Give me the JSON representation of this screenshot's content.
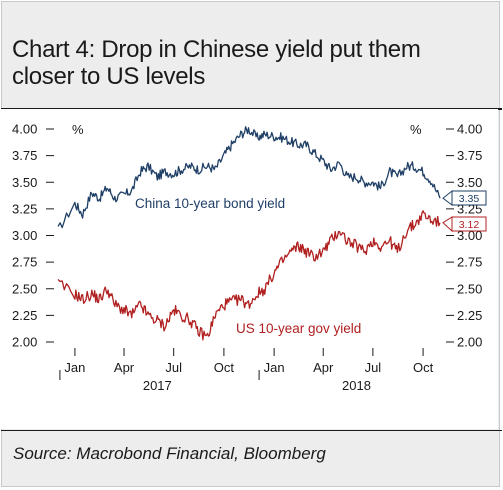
{
  "title": "Chart 4: Drop in Chinese yield put them closer to US levels",
  "source": "Source: Macrobond Financial, Bloomberg",
  "colors": {
    "china": "#1f3f66",
    "us": "#b02020",
    "background": "#ededed"
  },
  "chart_data": {
    "type": "line",
    "y_unit_label": "%",
    "ylim": [
      2.0,
      4.0
    ],
    "yticks": [
      "4.00",
      "3.75",
      "3.50",
      "3.25",
      "3.00",
      "2.75",
      "2.50",
      "2.25",
      "2.00"
    ],
    "xtick_labels": [
      "Jan",
      "Apr",
      "Jul",
      "Oct",
      "Jan",
      "Apr",
      "Jul",
      "Oct"
    ],
    "year_labels": [
      "2017",
      "2018"
    ],
    "grid": false,
    "series": [
      {
        "name": "China 10-year bond yield",
        "end_label": "3.35",
        "x": [
          "2016-12",
          "2017-01",
          "2017-01-15",
          "2017-02",
          "2017-02-15",
          "2017-03",
          "2017-03-15",
          "2017-04",
          "2017-04-15",
          "2017-05",
          "2017-05-15",
          "2017-06",
          "2017-06-15",
          "2017-07",
          "2017-07-15",
          "2017-08",
          "2017-08-15",
          "2017-09",
          "2017-09-15",
          "2017-10",
          "2017-10-15",
          "2017-11",
          "2017-11-15",
          "2017-12",
          "2017-12-15",
          "2018-01",
          "2018-01-15",
          "2018-02",
          "2018-02-15",
          "2018-03",
          "2018-03-15",
          "2018-04",
          "2018-04-15",
          "2018-05",
          "2018-05-15",
          "2018-06",
          "2018-06-15",
          "2018-07",
          "2018-07-15",
          "2018-08",
          "2018-08-15",
          "2018-09",
          "2018-09-15",
          "2018-10",
          "2018-10-15",
          "2018-11"
        ],
        "values": [
          3.05,
          3.3,
          3.2,
          3.4,
          3.35,
          3.45,
          3.35,
          3.38,
          3.42,
          3.6,
          3.65,
          3.55,
          3.6,
          3.58,
          3.62,
          3.65,
          3.62,
          3.65,
          3.62,
          3.75,
          3.85,
          3.95,
          4.0,
          3.92,
          3.95,
          3.93,
          3.92,
          3.88,
          3.85,
          3.85,
          3.78,
          3.7,
          3.62,
          3.68,
          3.55,
          3.55,
          3.5,
          3.5,
          3.45,
          3.6,
          3.55,
          3.65,
          3.65,
          3.6,
          3.52,
          3.35
        ]
      },
      {
        "name": "US 10-year gov yield",
        "end_label": "3.12",
        "x": [
          "2016-12",
          "2017-01",
          "2017-01-15",
          "2017-02",
          "2017-02-15",
          "2017-03",
          "2017-03-15",
          "2017-04",
          "2017-04-15",
          "2017-05",
          "2017-05-15",
          "2017-06",
          "2017-06-15",
          "2017-07",
          "2017-07-15",
          "2017-08",
          "2017-08-15",
          "2017-09",
          "2017-09-15",
          "2017-10",
          "2017-10-15",
          "2017-11",
          "2017-11-15",
          "2017-12",
          "2017-12-15",
          "2018-01",
          "2018-01-15",
          "2018-02",
          "2018-02-15",
          "2018-03",
          "2018-03-15",
          "2018-04",
          "2018-04-15",
          "2018-05",
          "2018-05-15",
          "2018-06",
          "2018-06-15",
          "2018-07",
          "2018-07-15",
          "2018-08",
          "2018-08-15",
          "2018-09",
          "2018-09-15",
          "2018-10",
          "2018-10-15",
          "2018-11"
        ],
        "values": [
          2.55,
          2.45,
          2.4,
          2.45,
          2.4,
          2.5,
          2.35,
          2.3,
          2.25,
          2.35,
          2.25,
          2.2,
          2.15,
          2.3,
          2.25,
          2.2,
          2.1,
          2.05,
          2.25,
          2.35,
          2.38,
          2.4,
          2.35,
          2.45,
          2.5,
          2.65,
          2.75,
          2.85,
          2.9,
          2.85,
          2.8,
          2.85,
          2.95,
          3.05,
          2.95,
          2.9,
          2.85,
          2.95,
          2.9,
          2.95,
          2.85,
          3.05,
          3.1,
          3.2,
          3.15,
          3.12
        ]
      }
    ]
  }
}
